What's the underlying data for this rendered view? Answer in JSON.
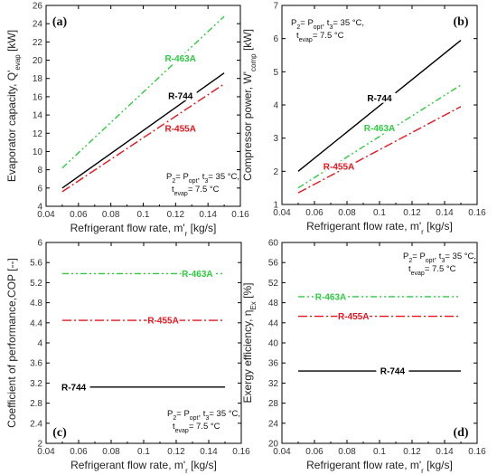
{
  "colors": {
    "R-744": "#000000",
    "R-455A": "#e8141b",
    "R-463A": "#2ecc40"
  },
  "chart_data": [
    {
      "panel": "(a)",
      "type": "line",
      "xlabel": "Refrigerant flow rate, m'r [kg/s]",
      "ylabel": "Evaporator capacity, Q'evap [kW]",
      "xlim": [
        0.04,
        0.16
      ],
      "ylim": [
        4,
        26
      ],
      "xticks": [
        "0.04",
        "0.06",
        "0.08",
        "0.1",
        "0.12",
        "0.14",
        "0.16"
      ],
      "yticks": [
        "4",
        "6",
        "8",
        "10",
        "12",
        "14",
        "16",
        "18",
        "20",
        "22",
        "24",
        "26"
      ],
      "annotation": [
        "P2= Popt, t3= 35 °C,",
        "tevap= 7.5 °C"
      ],
      "annotation_pos": "bottom-right",
      "series": [
        {
          "name": "R-463A",
          "x": [
            0.05,
            0.15
          ],
          "y": [
            8.2,
            24.8
          ],
          "label_at": [
            0.123,
            20.2
          ]
        },
        {
          "name": "R-744",
          "x": [
            0.05,
            0.15
          ],
          "y": [
            6.0,
            18.6
          ],
          "label_at": [
            0.123,
            16.1
          ]
        },
        {
          "name": "R-455A",
          "x": [
            0.05,
            0.15
          ],
          "y": [
            5.6,
            17.4
          ],
          "label_at": [
            0.123,
            12.5
          ]
        }
      ]
    },
    {
      "panel": "(b)",
      "type": "line",
      "xlabel": "Refrigerant flow rate, m'r [kg/s]",
      "ylabel": "Compressor power, W'comp [kW]",
      "xlim": [
        0.04,
        0.16
      ],
      "ylim": [
        1,
        7
      ],
      "xticks": [
        "0.04",
        "0.06",
        "0.08",
        "0.1",
        "0.12",
        "0.14",
        "0.16"
      ],
      "yticks": [
        "1",
        "2",
        "3",
        "4",
        "5",
        "6",
        "7"
      ],
      "annotation": [
        "P2= Popt, t3= 35 °C,",
        "tevap= 7.5 °C"
      ],
      "annotation_pos": "top-left",
      "series": [
        {
          "name": "R-744",
          "x": [
            0.05,
            0.15
          ],
          "y": [
            2.0,
            5.95
          ],
          "label_at": [
            0.1,
            4.2
          ]
        },
        {
          "name": "R-463A",
          "x": [
            0.05,
            0.15
          ],
          "y": [
            1.5,
            4.6
          ],
          "label_at": [
            0.1,
            3.3
          ]
        },
        {
          "name": "R-455A",
          "x": [
            0.05,
            0.15
          ],
          "y": [
            1.35,
            3.95
          ],
          "label_at": [
            0.075,
            2.15
          ]
        }
      ]
    },
    {
      "panel": "(c)",
      "type": "line",
      "xlabel": "Refrigerant flow rate, m'r [kg/s]",
      "ylabel": "Coefficient of performance,COP [--]",
      "xlim": [
        0.04,
        0.16
      ],
      "ylim": [
        2,
        6
      ],
      "xticks": [
        "0.04",
        "0.06",
        "0.08",
        "0.1",
        "0.12",
        "0.14",
        "0.16"
      ],
      "yticks": [
        "2",
        "2.4",
        "2.8",
        "3.2",
        "3.6",
        "4",
        "4.4",
        "4.8",
        "5.2",
        "5.6",
        "6"
      ],
      "annotation": [
        "P2= Popt, t3= 35 °C,",
        "tevap= 7.5 °C"
      ],
      "annotation_pos": "bottom-right",
      "series": [
        {
          "name": "R-463A",
          "x": [
            0.05,
            0.15
          ],
          "y": [
            5.38,
            5.38
          ],
          "label_at": [
            0.133,
            5.38
          ]
        },
        {
          "name": "R-455A",
          "x": [
            0.05,
            0.15
          ],
          "y": [
            4.45,
            4.45
          ],
          "label_at": [
            0.112,
            4.45
          ]
        },
        {
          "name": "R-744",
          "x": [
            0.05,
            0.15
          ],
          "y": [
            3.12,
            3.12
          ],
          "label_at": [
            0.057,
            3.12
          ]
        }
      ]
    },
    {
      "panel": "(d)",
      "type": "line",
      "xlabel": "Refrigerant flow rate, m'r [kg/s]",
      "ylabel": "Exergy efficiency, ηEx [%]",
      "xlim": [
        0.04,
        0.16
      ],
      "ylim": [
        20,
        60
      ],
      "xticks": [
        "0.04",
        "0.06",
        "0.08",
        "0.1",
        "0.12",
        "0.14",
        "0.16"
      ],
      "yticks": [
        "20",
        "24",
        "28",
        "32",
        "36",
        "40",
        "44",
        "48",
        "52",
        "56",
        "60"
      ],
      "annotation": [
        "P2= Popt, t3= 35 °C,",
        "tevap= 7.5 °C"
      ],
      "annotation_pos": "top-right",
      "series": [
        {
          "name": "R-463A",
          "x": [
            0.05,
            0.15
          ],
          "y": [
            49.2,
            49.2
          ],
          "label_at": [
            0.07,
            49.2
          ]
        },
        {
          "name": "R-455A",
          "x": [
            0.05,
            0.15
          ],
          "y": [
            45.3,
            45.3
          ],
          "label_at": [
            0.084,
            45.3
          ]
        },
        {
          "name": "R-744",
          "x": [
            0.05,
            0.15
          ],
          "y": [
            34.4,
            34.4
          ],
          "label_at": [
            0.108,
            34.4
          ]
        }
      ]
    }
  ]
}
